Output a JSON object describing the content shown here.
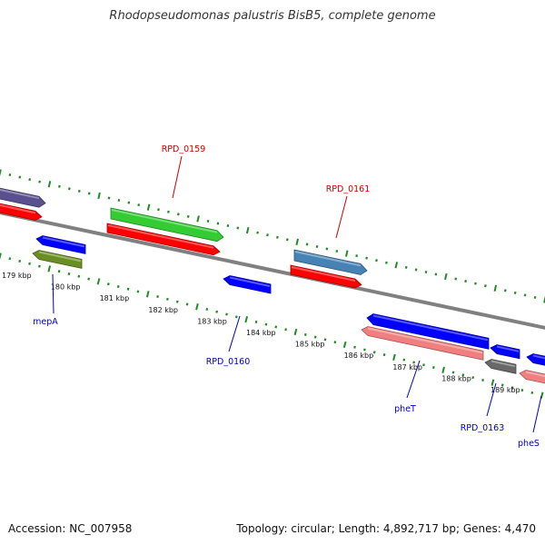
{
  "header": {
    "title": "Rhodopseudomonas palustris BisB5, complete genome"
  },
  "footer": {
    "accession": "Accession: NC_007958",
    "summary": "Topology: circular; Length: 4,892,717 bp; Genes: 4,470"
  },
  "colors": {
    "backbone": "#808080",
    "tick": "#228b22",
    "tick_label": "#111111",
    "label_forward": "#cc0000",
    "label_reverse": "#0000bb",
    "leader_forward": "#cc0000",
    "leader_reverse": "#0000bb"
  },
  "axis": {
    "kbp_labels": [
      "179 kbp",
      "180 kbp",
      "181 kbp",
      "182 kbp",
      "183 kbp",
      "184 kbp",
      "185 kbp",
      "186 kbp",
      "187 kbp",
      "188 kbp",
      "189 kbp"
    ]
  },
  "genes": [
    {
      "label": "",
      "color": "#5a4f8f",
      "strand": "+"
    },
    {
      "label": "",
      "color": "#ff0000",
      "strand": "+"
    },
    {
      "label": "RPD_0159",
      "color": "#33cc33",
      "strand": "+"
    },
    {
      "label": "",
      "color": "#ff0000",
      "strand": "+"
    },
    {
      "label": "RPD_0161",
      "color": "#4682b4",
      "strand": "+"
    },
    {
      "label": "",
      "color": "#ff0000",
      "strand": "+"
    },
    {
      "label": "",
      "color": "#0000ff",
      "strand": "-"
    },
    {
      "label": "mepA",
      "color": "#6b8e23",
      "strand": "-"
    },
    {
      "label": "RPD_0160",
      "color": "#0000ff",
      "strand": "-"
    },
    {
      "label": "",
      "color": "#0000ff",
      "strand": "-"
    },
    {
      "label": "pheT",
      "color": "#f08080",
      "strand": "-"
    },
    {
      "label": "",
      "color": "#0000ff",
      "strand": "-"
    },
    {
      "label": "RPD_0163",
      "color": "#696969",
      "strand": "-"
    },
    {
      "label": "",
      "color": "#0000ff",
      "strand": "-"
    },
    {
      "label": "pheS",
      "color": "#f08080",
      "strand": "-"
    }
  ]
}
